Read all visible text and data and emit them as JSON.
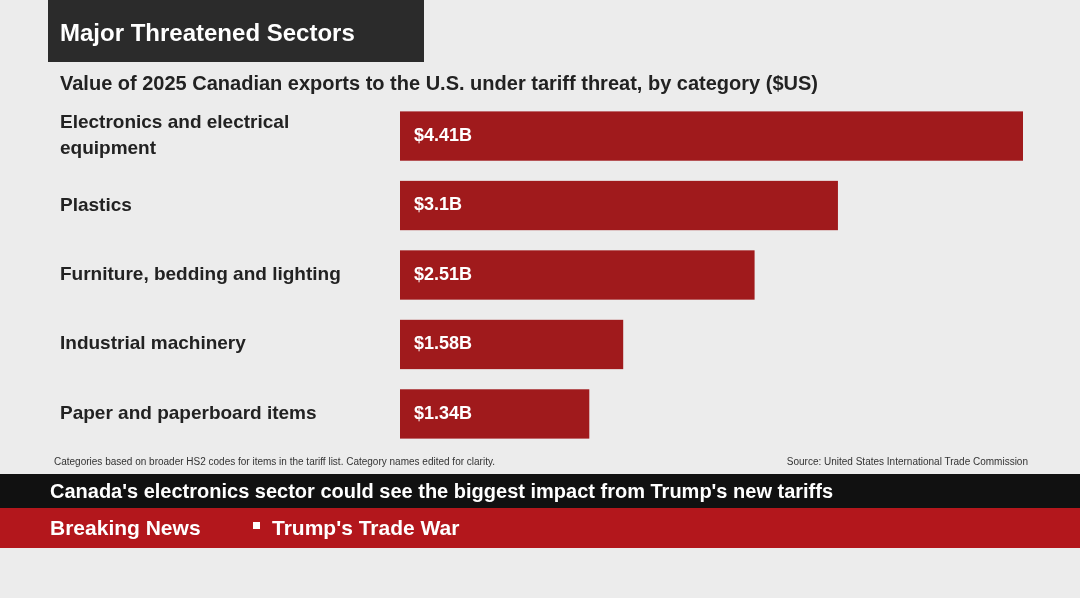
{
  "chart_data": {
    "type": "bar",
    "orientation": "horizontal",
    "title": "Major Threatened Sectors",
    "subtitle": "Value of 2025 Canadian exports to the U.S. under tariff threat, by category ($US)",
    "categories": [
      "Electronics and electrical equipment",
      "Plastics",
      "Furniture, bedding and lighting",
      "Industrial machinery",
      "Paper and paperboard items"
    ],
    "values": [
      4.41,
      3.1,
      2.51,
      1.58,
      1.34
    ],
    "value_labels": [
      "$4.41B",
      "$3.1B",
      "$2.51B",
      "$1.58B",
      "$1.34B"
    ],
    "color": "#a01a1c",
    "annotations": [
      "Categories based on broader HS2 codes for items in the tariff list. Category names edited for clarity.",
      "Source: United States International Trade Commission",
      "Canada's electronics sector could see the biggest impact from Trump's new tariffs",
      "Breaking News",
      "Trump's Trade War"
    ]
  }
}
